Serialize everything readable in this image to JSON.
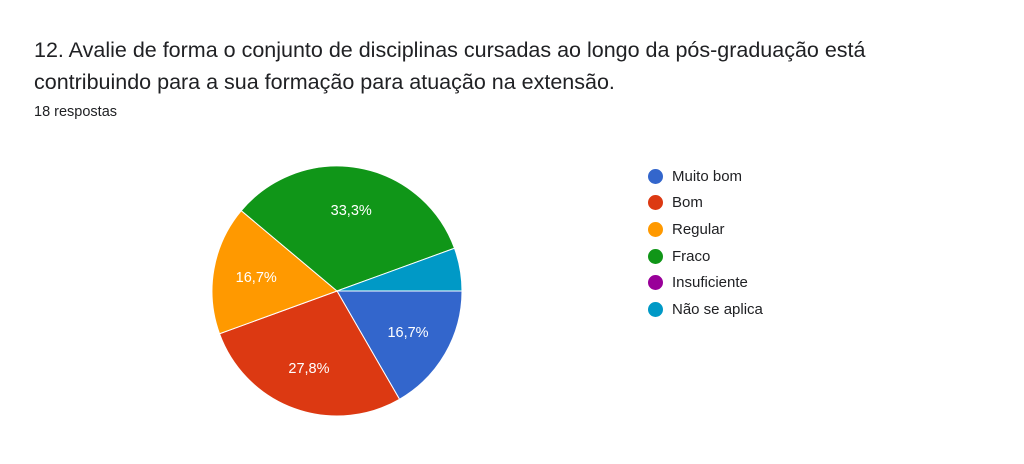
{
  "question": {
    "title": "12. Avalie de forma o conjunto de disciplinas cursadas ao longo da pós-graduação está contribuindo para a sua formação para atuação na extensão.",
    "responses": "18 respostas"
  },
  "chart_data": {
    "type": "pie",
    "start_angle_deg": 90,
    "direction": "clockwise",
    "legend_position": "right",
    "slices": [
      {
        "label": "Muito bom",
        "count": 3,
        "percent_label": "16,7%",
        "color": "#3366cc"
      },
      {
        "label": "Bom",
        "count": 5,
        "percent_label": "27,8%",
        "color": "#dc3912"
      },
      {
        "label": "Regular",
        "count": 3,
        "percent_label": "16,7%",
        "color": "#ff9900"
      },
      {
        "label": "Fraco",
        "count": 6,
        "percent_label": "33,3%",
        "color": "#109618"
      },
      {
        "label": "Insuficiente",
        "count": 0,
        "percent_label": "",
        "color": "#990099"
      },
      {
        "label": "Não se aplica",
        "count": 1,
        "percent_label": "",
        "color": "#0099c6"
      }
    ]
  }
}
